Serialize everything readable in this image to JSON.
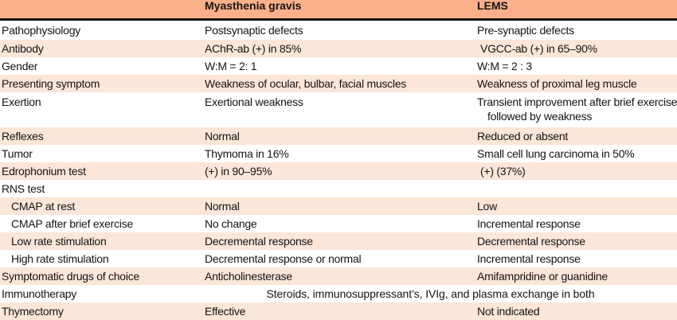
{
  "title": "Comparison table of myasthenia gravis and LEMS",
  "colors": {
    "header_bg": "#fbb089",
    "row_alt_bg": "#fce5d9",
    "row_bg": "#ffffff",
    "header_rule": "#121212",
    "text": "#141414"
  },
  "header": {
    "col1": "",
    "col2": "Myasthenia gravis",
    "col3": "LEMS"
  },
  "rows": [
    {
      "label": "Pathophysiology",
      "mg": "Postsynaptic defects",
      "lems": "Pre-synaptic defects"
    },
    {
      "label": "Antibody",
      "mg": "AChR-ab (+) in 85%",
      "lems": "VGCC-ab (+) in 65–90%"
    },
    {
      "label": "Gender",
      "mg": "W:M = 2: 1",
      "lems": "W:M = 2 : 3"
    },
    {
      "label": "Presenting symptom",
      "mg": "Weakness of ocular, bulbar, facial muscles",
      "lems": "Weakness of proximal leg muscle"
    },
    {
      "label": "Exertion",
      "mg": "Exertional weakness",
      "lems_line1": "Transient improvement after brief exercise",
      "lems_line2": "followed by weakness"
    },
    {
      "label": "Reflexes",
      "mg": "Normal",
      "lems": "Reduced or absent"
    },
    {
      "label": "Tumor",
      "mg": "Thymoma in 16%",
      "lems": "Small cell lung carcinoma in 50%"
    },
    {
      "label": "Edrophonium test",
      "mg": "(+) in 90–95%",
      "lems": "(+) (37%)"
    },
    {
      "label": "RNS test",
      "mg": "",
      "lems": ""
    },
    {
      "label": "CMAP at rest",
      "mg": "Normal",
      "lems": "Low",
      "indent": true
    },
    {
      "label": "CMAP after brief exercise",
      "mg": "No change",
      "lems": "Incremental response",
      "indent": true
    },
    {
      "label": "Low rate stimulation",
      "mg": "Decremental response",
      "lems": "Decremental response",
      "indent": true
    },
    {
      "label": "High rate stimulation",
      "mg": "Decremental response or normal",
      "lems": "Incremental response",
      "indent": true
    },
    {
      "label": "Symptomatic drugs of choice",
      "mg": "Anticholinesterase",
      "lems": "Amifampridine or guanidine"
    },
    {
      "label": "Immunotherapy",
      "span": "Steroids, immunosuppressant’s, IVIg, and plasma exchange in both"
    },
    {
      "label": "Thymectomy",
      "mg": "Effective",
      "lems": "Not indicated"
    }
  ],
  "chart_data": {
    "type": "table",
    "title": "Comparison of myasthenia gravis and LEMS",
    "columns": [
      "",
      "Myasthenia gravis",
      "LEMS"
    ],
    "rows": [
      [
        "Pathophysiology",
        "Postsynaptic defects",
        "Pre-synaptic defects"
      ],
      [
        "Antibody",
        "AChR-ab (+) in 85%",
        "VGCC-ab (+) in 65–90%"
      ],
      [
        "Gender",
        "W:M = 2: 1",
        "W:M = 2 : 3"
      ],
      [
        "Presenting symptom",
        "Weakness of ocular, bulbar, facial muscles",
        "Weakness of proximal leg muscle"
      ],
      [
        "Exertion",
        "Exertional weakness",
        "Transient improvement after brief exercise followed by weakness"
      ],
      [
        "Reflexes",
        "Normal",
        "Reduced or absent"
      ],
      [
        "Tumor",
        "Thymoma in 16%",
        "Small cell lung carcinoma in 50%"
      ],
      [
        "Edrophonium test",
        "(+) in 90–95%",
        "(+) (37%)"
      ],
      [
        "RNS test",
        "",
        ""
      ],
      [
        "CMAP at rest",
        "Normal",
        "Low"
      ],
      [
        "CMAP after brief exercise",
        "No change",
        "Incremental response"
      ],
      [
        "Low rate stimulation",
        "Decremental response",
        "Decremental response"
      ],
      [
        "High rate stimulation",
        "Decremental response or normal",
        "Incremental response"
      ],
      [
        "Symptomatic drugs of choice",
        "Anticholinesterase",
        "Amifampridine or guanidine"
      ],
      [
        "Immunotherapy",
        "Steroids, immunosuppressant’s, IVIg, and plasma exchange in both",
        ""
      ],
      [
        "Thymectomy",
        "Effective",
        "Not indicated"
      ]
    ]
  }
}
